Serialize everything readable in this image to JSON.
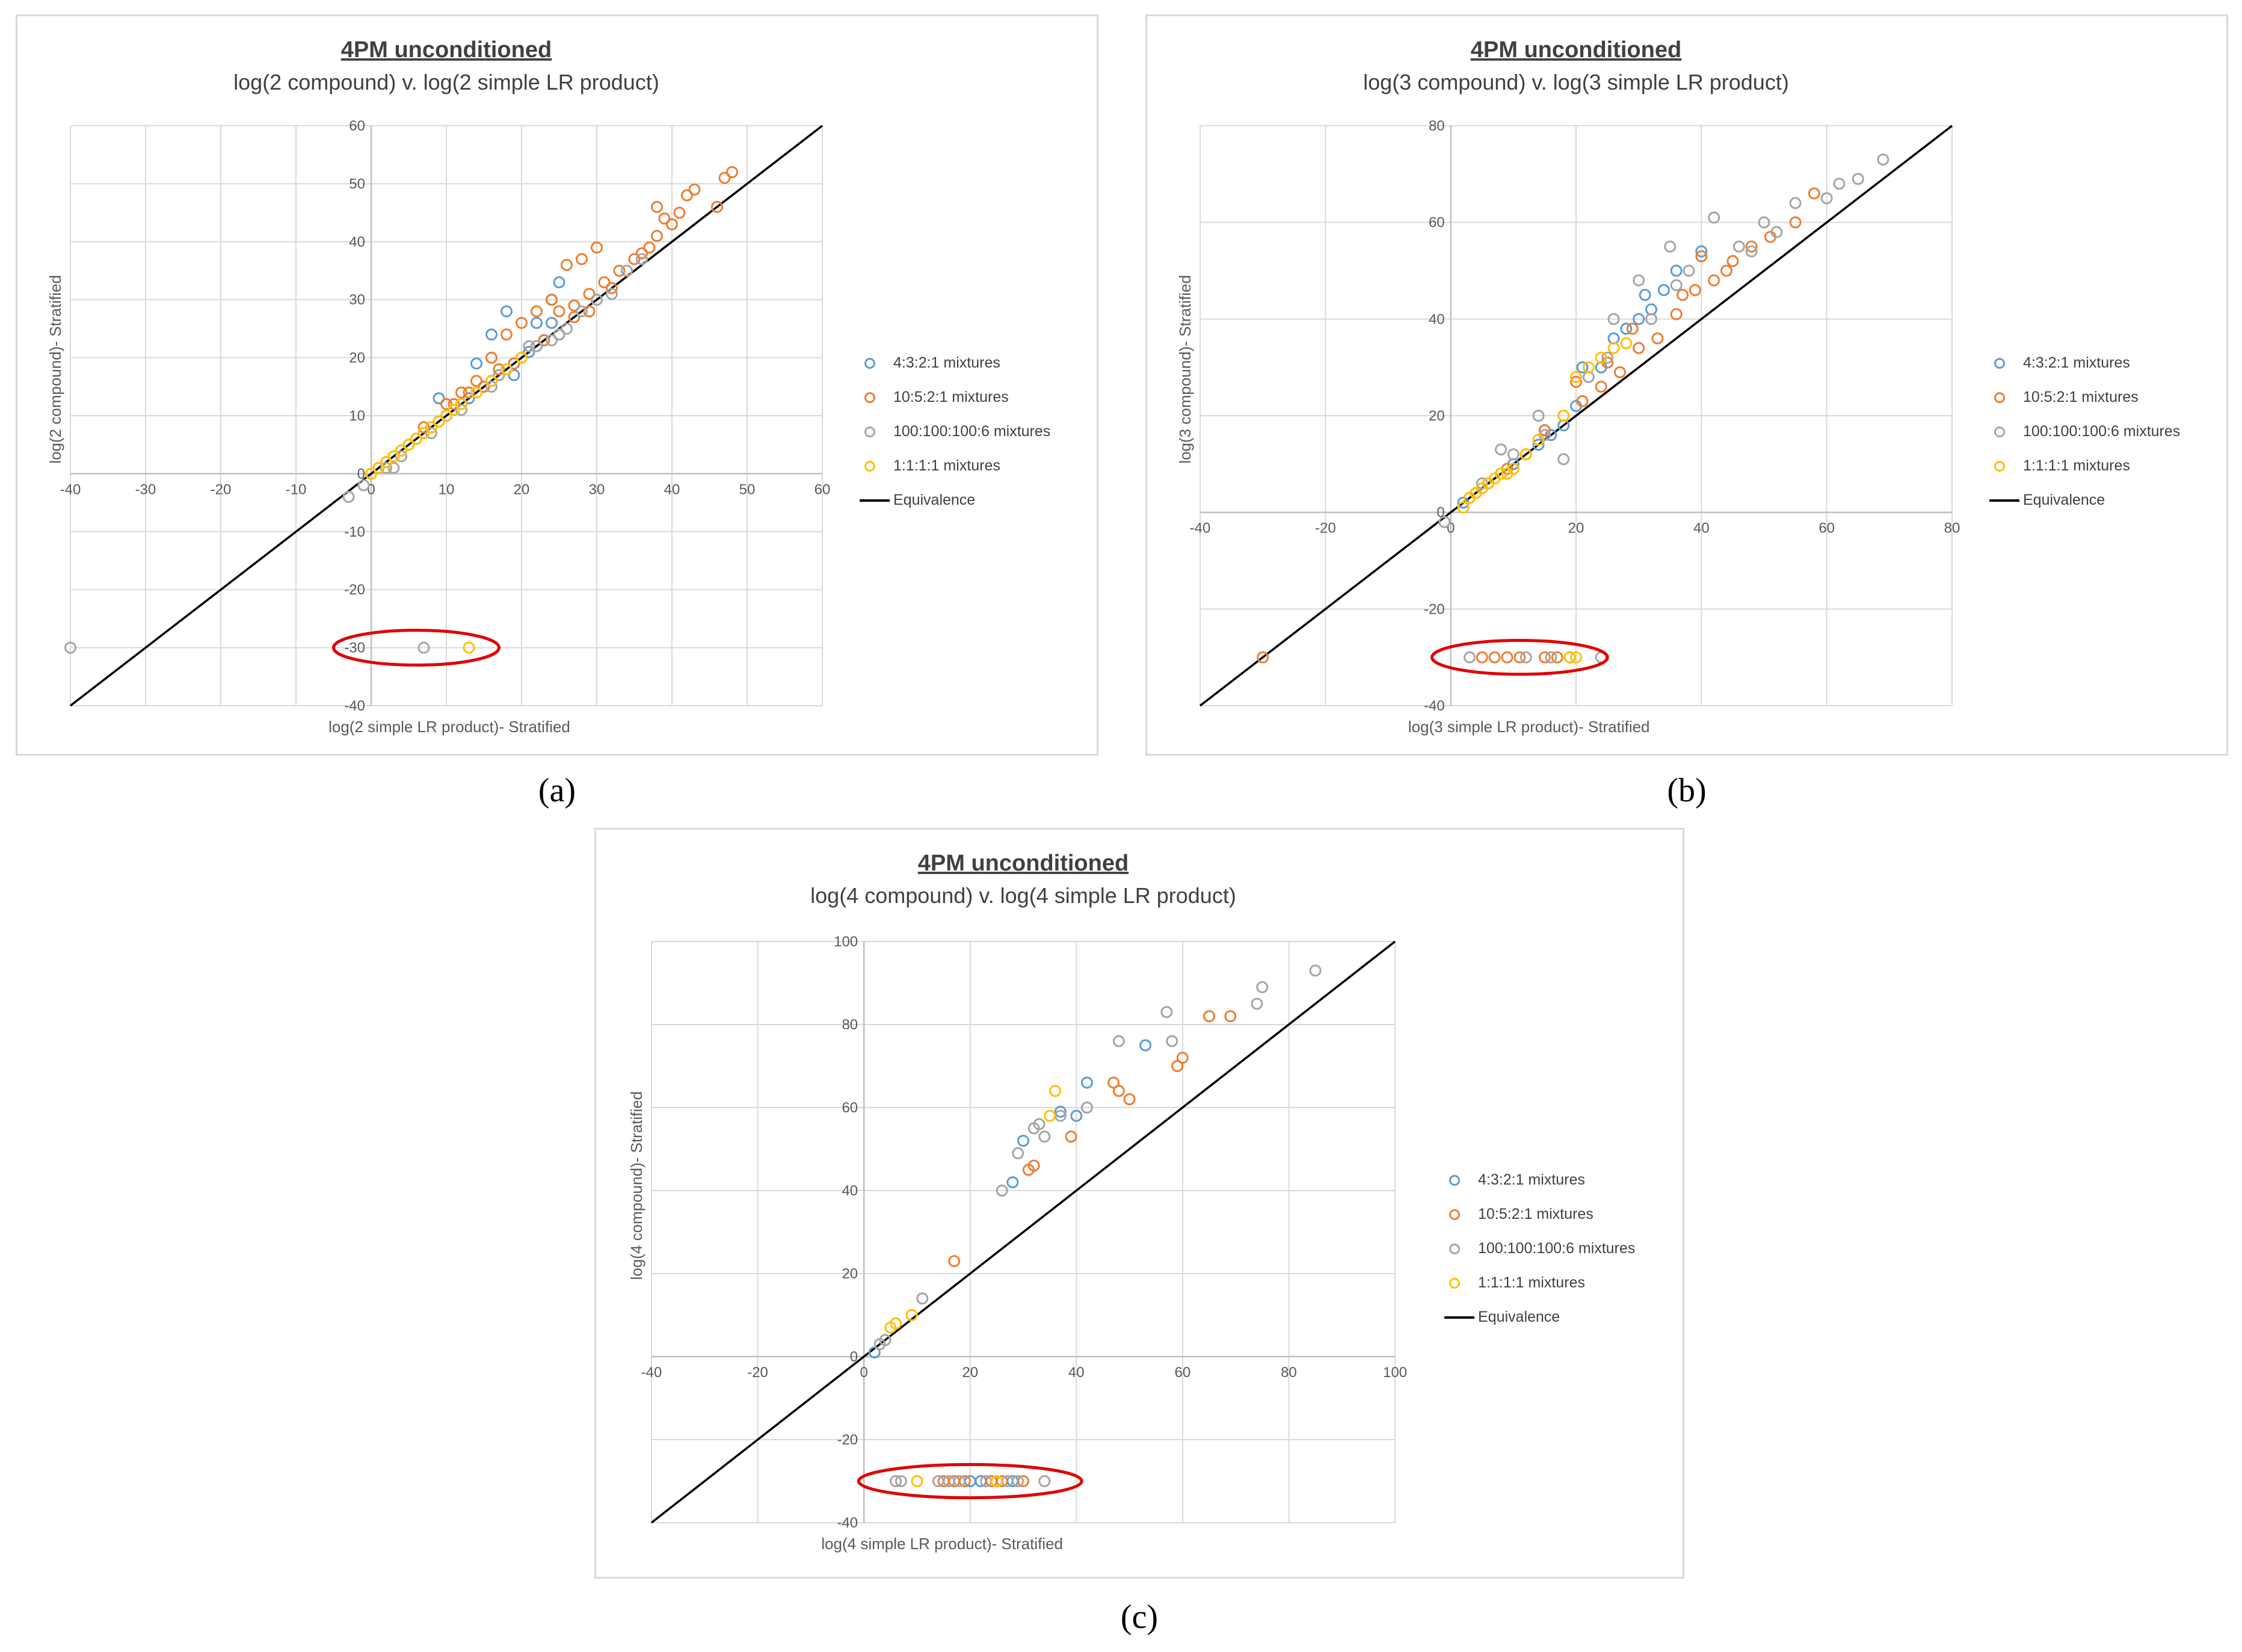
{
  "colors": {
    "s1": "#5b9bd5",
    "s2": "#ed7d31",
    "s3": "#a5a5a5",
    "s4": "#ffc000",
    "equivalence": "#000000",
    "highlight": "#e00000",
    "grid": "#d9d9d9",
    "tick_text": "#595959"
  },
  "series_names": [
    "4:3:2:1 mixtures",
    "10:5:2:1 mixtures",
    "100:100:100:6 mixtures",
    "1:1:1:1 mixtures"
  ],
  "equivalence_label": "Equivalence",
  "captions": [
    "(a)",
    "(b)",
    "(c)"
  ],
  "chart_data": [
    {
      "type": "scatter",
      "title": "4PM unconditioned",
      "subtitle": "log(2 compound) v. log(2 simple LR product)",
      "xlabel": "log(2 simple LR product)- Stratified",
      "ylabel": "log(2 compound)- Stratified",
      "xlim": [
        -40,
        60
      ],
      "ylim": [
        -40,
        60
      ],
      "xticks": [
        -40,
        -30,
        -20,
        -10,
        0,
        10,
        20,
        30,
        40,
        50,
        60
      ],
      "yticks": [
        -40,
        -30,
        -20,
        -10,
        0,
        10,
        20,
        30,
        40,
        50,
        60
      ],
      "legend_position": "right",
      "highlight_ellipse": {
        "x": 6,
        "y": -30,
        "rx": 11,
        "ry": 3
      },
      "series": [
        {
          "name": "4:3:2:1 mixtures",
          "x": [
            2,
            3,
            4,
            5,
            6,
            7,
            8,
            9,
            10,
            11,
            12,
            13,
            14,
            15,
            16,
            17,
            18,
            19,
            20,
            21,
            22,
            23,
            24,
            25,
            14,
            18,
            22,
            24,
            9,
            16,
            19
          ],
          "y": [
            2,
            3,
            4,
            5,
            6,
            7,
            8,
            9,
            10,
            11,
            12,
            13,
            14,
            15,
            16,
            17,
            18,
            19,
            20,
            21,
            22,
            23,
            26,
            33,
            19,
            28,
            26,
            30,
            13,
            24,
            17
          ]
        },
        {
          "name": "10:5:2:1 mixtures",
          "x": [
            1,
            3,
            5,
            7,
            9,
            11,
            13,
            15,
            17,
            19,
            21,
            23,
            25,
            27,
            29,
            31,
            33,
            35,
            37,
            38,
            39,
            40,
            41,
            42,
            43,
            46,
            47,
            48,
            26,
            28,
            30,
            24,
            22,
            20,
            18,
            16,
            14,
            12,
            10,
            30,
            32,
            34,
            36,
            38,
            25,
            27,
            29
          ],
          "y": [
            1,
            3,
            5,
            8,
            9,
            12,
            14,
            15,
            18,
            19,
            22,
            23,
            24,
            27,
            28,
            33,
            35,
            37,
            39,
            46,
            44,
            43,
            45,
            48,
            49,
            46,
            51,
            52,
            36,
            37,
            39,
            30,
            28,
            26,
            24,
            20,
            16,
            14,
            12,
            30,
            32,
            35,
            38,
            41,
            28,
            29,
            31
          ]
        },
        {
          "name": "100:100:100:6 mixtures",
          "x": [
            -3,
            -1,
            0,
            2,
            4,
            6,
            8,
            10,
            12,
            14,
            16,
            18,
            20,
            22,
            24,
            26,
            28,
            30,
            32,
            34,
            36,
            -40,
            7,
            3,
            17,
            21,
            25
          ],
          "y": [
            -4,
            -2,
            0,
            1,
            3,
            6,
            7,
            10,
            11,
            14,
            15,
            18,
            20,
            22,
            23,
            25,
            28,
            30,
            31,
            35,
            37,
            -30,
            -30,
            1,
            17,
            22,
            24
          ]
        },
        {
          "name": "1:1:1:1 mixtures",
          "x": [
            0,
            1,
            2,
            3,
            4,
            5,
            6,
            7,
            8,
            9,
            10,
            11,
            12,
            14,
            16,
            18,
            20,
            13
          ],
          "y": [
            0,
            1,
            2,
            3,
            4,
            5,
            6,
            7,
            8,
            9,
            10,
            11,
            12,
            14,
            16,
            18,
            20,
            -30
          ]
        }
      ]
    },
    {
      "type": "scatter",
      "title": "4PM unconditioned",
      "subtitle": "log(3 compound) v. log(3 simple LR product)",
      "xlabel": "log(3 simple LR product)- Stratified",
      "ylabel": "log(3 compound)- Stratified",
      "xlim": [
        -40,
        80
      ],
      "ylim": [
        -40,
        80
      ],
      "xticks": [
        -40,
        -20,
        0,
        20,
        40,
        60,
        80
      ],
      "yticks": [
        -40,
        -20,
        0,
        20,
        40,
        60,
        80
      ],
      "legend_position": "right",
      "highlight_ellipse": {
        "x": 11,
        "y": -30,
        "rx": 14,
        "ry": 3.5
      },
      "series": [
        {
          "name": "4:3:2:1 mixtures",
          "x": [
            2,
            4,
            6,
            8,
            10,
            12,
            14,
            16,
            18,
            20,
            22,
            24,
            26,
            28,
            30,
            32,
            34,
            36,
            40,
            15,
            21,
            31
          ],
          "y": [
            2,
            4,
            6,
            8,
            10,
            12,
            14,
            16,
            18,
            22,
            28,
            30,
            36,
            38,
            40,
            42,
            46,
            50,
            54,
            17,
            30,
            45
          ]
        },
        {
          "name": "10:5:2:1 mixtures",
          "x": [
            3,
            6,
            9,
            12,
            15,
            18,
            21,
            24,
            27,
            30,
            33,
            36,
            39,
            42,
            45,
            48,
            51,
            55,
            58,
            40,
            44,
            37,
            29,
            25,
            20,
            -30,
            5,
            7,
            9,
            11,
            15,
            17
          ],
          "y": [
            3,
            6,
            9,
            12,
            17,
            20,
            23,
            26,
            29,
            34,
            36,
            41,
            46,
            48,
            52,
            55,
            57,
            60,
            66,
            53,
            50,
            45,
            38,
            31,
            27,
            -30,
            -30,
            -30,
            -30,
            -30,
            -30,
            -30
          ]
        },
        {
          "name": "100:100:100:6 mixtures",
          "x": [
            -1,
            5,
            10,
            15,
            18,
            22,
            25,
            30,
            35,
            38,
            42,
            46,
            50,
            55,
            60,
            62,
            65,
            69,
            48,
            52,
            36,
            32,
            26,
            14,
            8,
            3,
            12,
            16,
            19,
            24
          ],
          "y": [
            -2,
            6,
            12,
            16,
            11,
            28,
            32,
            48,
            55,
            50,
            61,
            55,
            60,
            64,
            65,
            68,
            69,
            73,
            54,
            58,
            47,
            40,
            40,
            20,
            13,
            -30,
            -30,
            -30,
            -30,
            -30
          ]
        },
        {
          "name": "1:1:1:1 mixtures",
          "x": [
            2,
            3,
            4,
            5,
            6,
            7,
            8,
            9,
            10,
            12,
            14,
            18,
            20,
            22,
            24,
            26,
            28,
            19,
            20
          ],
          "y": [
            1,
            3,
            4,
            5,
            6,
            7,
            8,
            8,
            9,
            12,
            15,
            20,
            28,
            30,
            32,
            34,
            35,
            -30,
            -30
          ]
        }
      ]
    },
    {
      "type": "scatter",
      "title": "4PM unconditioned",
      "subtitle": "log(4 compound) v. log(4 simple LR product)",
      "xlabel": "log(4 simple LR product)- Stratified",
      "ylabel": "log(4 compound)- Stratified",
      "xlim": [
        -40,
        100
      ],
      "ylim": [
        -40,
        100
      ],
      "xticks": [
        -40,
        -20,
        0,
        20,
        40,
        60,
        80,
        100
      ],
      "yticks": [
        -40,
        -20,
        0,
        20,
        40,
        60,
        80,
        100
      ],
      "legend_position": "right",
      "highlight_ellipse": {
        "x": 20,
        "y": -30,
        "rx": 21,
        "ry": 4
      },
      "series": [
        {
          "name": "4:3:2:1 mixtures",
          "x": [
            2,
            28,
            37,
            40,
            42,
            53,
            30,
            20,
            22,
            28
          ],
          "y": [
            1,
            42,
            59,
            58,
            66,
            75,
            52,
            -30,
            -30,
            -30
          ]
        },
        {
          "name": "10:5:2:1 mixtures",
          "x": [
            17,
            31,
            32,
            39,
            47,
            48,
            50,
            59,
            60,
            65,
            69,
            15,
            17,
            19,
            24,
            26,
            30
          ],
          "y": [
            23,
            45,
            46,
            53,
            66,
            64,
            62,
            70,
            72,
            82,
            82,
            -30,
            -30,
            -30,
            -30,
            -30,
            -30
          ]
        },
        {
          "name": "100:100:100:6 mixtures",
          "x": [
            3,
            4,
            11,
            26,
            29,
            32,
            33,
            34,
            37,
            42,
            48,
            57,
            58,
            74,
            75,
            85,
            6,
            7,
            14,
            16,
            18,
            23,
            27,
            29,
            34
          ],
          "y": [
            3,
            4,
            14,
            40,
            49,
            55,
            56,
            53,
            58,
            60,
            76,
            83,
            76,
            85,
            89,
            93,
            -30,
            -30,
            -30,
            -30,
            -30,
            -30,
            -30,
            -30,
            -30
          ]
        },
        {
          "name": "1:1:1:1 mixtures",
          "x": [
            5,
            6,
            9,
            35,
            36,
            10,
            25
          ],
          "y": [
            7,
            8,
            10,
            58,
            64,
            -30,
            -30
          ]
        }
      ]
    }
  ]
}
